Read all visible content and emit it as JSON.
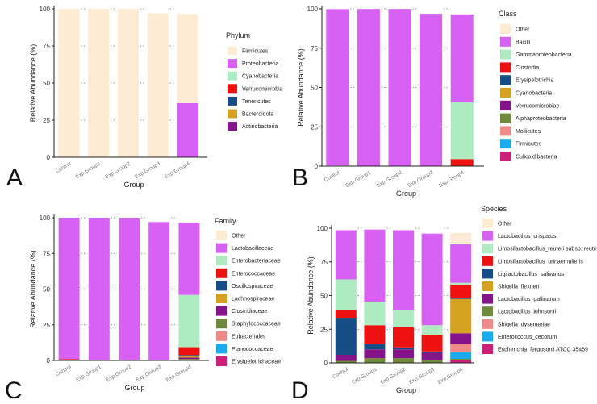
{
  "chart_data": [
    {
      "panel_letter": "A",
      "type": "bar",
      "stacked": true,
      "xlabel": "Group",
      "ylabel": "Relative Abundance (%)",
      "ylim": [
        0,
        100
      ],
      "yticks": [
        0,
        25,
        50,
        75,
        100
      ],
      "categories": [
        "Control",
        "Exp.Group1",
        "Exp.Group2",
        "Exp.Group3",
        "Exp.Group4"
      ],
      "legend_title": "Phylum",
      "legend_position": "right",
      "legend": [
        {
          "name": "Firmicutes",
          "color": "#FDEBD3"
        },
        {
          "name": "Proteobacteria",
          "color": "#D761F2"
        },
        {
          "name": "Cyanobacteria",
          "color": "#AEEBC0"
        },
        {
          "name": "Verrucomicrobia",
          "color": "#EE1111"
        },
        {
          "name": "Tenericutes",
          "color": "#164D87"
        },
        {
          "name": "Bacteroidota",
          "color": "#D4A120"
        },
        {
          "name": "Actinobacteria",
          "color": "#85138A"
        }
      ],
      "series": [
        {
          "name": "Proteobacteria",
          "color": "#D761F2",
          "values": [
            0.3,
            0.1,
            0.1,
            0.2,
            36.5
          ]
        },
        {
          "name": "Firmicutes",
          "color": "#FDEBD3",
          "values": [
            99.7,
            99.9,
            99.9,
            96.8,
            60
          ]
        }
      ]
    },
    {
      "panel_letter": "B",
      "type": "bar",
      "stacked": true,
      "xlabel": "Group",
      "ylabel": "Relative Abundance (%)",
      "ylim": [
        0,
        100
      ],
      "yticks": [
        0,
        25,
        50,
        75,
        100
      ],
      "categories": [
        "Control",
        "Exp.Group1",
        "Exp.Group2",
        "Exp.Group3",
        "Exp.Group4"
      ],
      "legend_title": "Class",
      "legend_position": "right",
      "legend": [
        {
          "name": "Other",
          "color": "#FDEBD3"
        },
        {
          "name": "Bacilli",
          "color": "#D761F2"
        },
        {
          "name": "Gammaproteobacteria",
          "color": "#AEEBC0"
        },
        {
          "name": "Clostridia",
          "color": "#EE1111"
        },
        {
          "name": "Erysipelotrichia",
          "color": "#164D87"
        },
        {
          "name": "Cyanobacteria",
          "color": "#D4A120"
        },
        {
          "name": "Verrucomicrobiae",
          "color": "#85138A"
        },
        {
          "name": "Alphaproteobacteria",
          "color": "#6F8A3A"
        },
        {
          "name": "Mollicutes",
          "color": "#F08A88"
        },
        {
          "name": "Firmicutes",
          "color": "#19ABEE"
        },
        {
          "name": "Culicoidibacteria",
          "color": "#CC1F77"
        }
      ],
      "series": [
        {
          "name": "Clostridia",
          "color": "#EE1111",
          "values": [
            0.2,
            0,
            0,
            0,
            4.5
          ]
        },
        {
          "name": "Gammaproteobacteria",
          "color": "#AEEBC0",
          "values": [
            0.2,
            0.1,
            0.1,
            0.1,
            36
          ]
        },
        {
          "name": "Bacilli",
          "color": "#D761F2",
          "values": [
            99.4,
            99.8,
            99.8,
            96.8,
            56
          ]
        }
      ]
    },
    {
      "panel_letter": "C",
      "type": "bar",
      "stacked": true,
      "xlabel": "Group",
      "ylabel": "Relative Abundance (%)",
      "ylim": [
        0,
        100
      ],
      "yticks": [
        0,
        25,
        50,
        75,
        100
      ],
      "categories": [
        "Control",
        "Exp.Group1",
        "Exp.Group2",
        "Exp.Group3",
        "Exp.Group4"
      ],
      "legend_title": "Family",
      "legend_position": "right",
      "legend": [
        {
          "name": "Other",
          "color": "#FDEBD3"
        },
        {
          "name": "Lactobacillaceae",
          "color": "#D761F2"
        },
        {
          "name": "Enterobacteriaceae",
          "color": "#AEEBC0"
        },
        {
          "name": "Enterococcaceae",
          "color": "#EE1111"
        },
        {
          "name": "Oscillospiraceae",
          "color": "#164D87"
        },
        {
          "name": "Lachnospiraceae",
          "color": "#D4A120"
        },
        {
          "name": "Clostridiaceae",
          "color": "#85138A"
        },
        {
          "name": "Staphylococcaceae",
          "color": "#6F8A3A"
        },
        {
          "name": "Eubacteriales",
          "color": "#F08A88"
        },
        {
          "name": "Planococcaceae",
          "color": "#19ABEE"
        },
        {
          "name": "Erysipelotrichaceae",
          "color": "#CC1F77"
        }
      ],
      "series": [
        {
          "name": "Staphylococcaceae",
          "color": "#6F8A3A",
          "values": [
            0,
            0,
            0,
            0,
            1
          ]
        },
        {
          "name": "Clostridiaceae",
          "color": "#85138A",
          "values": [
            0,
            0,
            0,
            0,
            1
          ]
        },
        {
          "name": "Lachnospiraceae",
          "color": "#D4A120",
          "values": [
            0.3,
            0,
            0,
            0,
            0.8
          ]
        },
        {
          "name": "Oscillospiraceae",
          "color": "#164D87",
          "values": [
            0.2,
            0,
            0,
            0,
            1
          ]
        },
        {
          "name": "Enterococcaceae",
          "color": "#EE1111",
          "values": [
            0.5,
            0.2,
            0.3,
            0.1,
            5.5
          ]
        },
        {
          "name": "Enterobacteriaceae",
          "color": "#AEEBC0",
          "values": [
            0,
            0.1,
            0.1,
            0.1,
            36.7
          ]
        },
        {
          "name": "Lactobacillaceae",
          "color": "#D761F2",
          "values": [
            99,
            99.7,
            99.6,
            96.8,
            50.5
          ]
        }
      ]
    },
    {
      "panel_letter": "D",
      "type": "bar",
      "stacked": true,
      "xlabel": "Group",
      "ylabel": "Relative Abundance (%)",
      "ylim": [
        0,
        100
      ],
      "yticks": [
        0,
        25,
        50,
        75,
        100
      ],
      "categories": [
        "Control",
        "Exp.Group1",
        "Exp.Group2",
        "Exp.Group3",
        "Exp.Group4"
      ],
      "legend_title": "Species",
      "legend_position": "right",
      "legend": [
        {
          "name": "Other",
          "color": "#FDEBD3"
        },
        {
          "name": "Lactobacillus_crispatus",
          "color": "#D761F2"
        },
        {
          "name": "Limosilactobacillus_reuteri subsp. reuteri",
          "color": "#AEEBC0"
        },
        {
          "name": "Limosilactobacillus_urinaemulieris",
          "color": "#EE1111"
        },
        {
          "name": "Ligilactobacillus_salivarius",
          "color": "#164D87"
        },
        {
          "name": "Shigella_flexneri",
          "color": "#D4A120"
        },
        {
          "name": "Lactobacillus_gallinarum",
          "color": "#85138A"
        },
        {
          "name": "Lactobacillus_johnsonii",
          "color": "#6F8A3A"
        },
        {
          "name": "Shigella_dysenteriae",
          "color": "#F08A88"
        },
        {
          "name": "Enterococcus_cecorum",
          "color": "#19ABEE"
        },
        {
          "name": "Escherichia_fergusonii ATCC 35469",
          "color": "#CC1F77"
        }
      ],
      "series": [
        {
          "name": "Escherichia_fergusonii ATCC 35469",
          "color": "#CC1F77",
          "values": [
            0,
            0,
            0,
            0,
            2
          ]
        },
        {
          "name": "Lactobacillus_johnsonii",
          "color": "#6F8A3A",
          "values": [
            1.5,
            3.5,
            3.5,
            2,
            1
          ]
        },
        {
          "name": "Enterococcus_cecorum",
          "color": "#19ABEE",
          "values": [
            0,
            0,
            0,
            0,
            5
          ]
        },
        {
          "name": "Shigella_dysenteriae",
          "color": "#F08A88",
          "values": [
            0,
            0,
            0,
            0,
            6
          ]
        },
        {
          "name": "Lactobacillus_gallinarum",
          "color": "#85138A",
          "values": [
            4.5,
            6.5,
            6.5,
            5.5,
            8
          ]
        },
        {
          "name": "Shigella_flexneri",
          "color": "#D4A120",
          "values": [
            0,
            0,
            0,
            0,
            25.5
          ]
        },
        {
          "name": "Ligilactobacillus_salivarius",
          "color": "#164D87",
          "values": [
            27.5,
            4,
            1.5,
            1,
            1
          ]
        },
        {
          "name": "Limosilactobacillus_urinaemulieris",
          "color": "#EE1111",
          "values": [
            6,
            14,
            15,
            12.5,
            9.5
          ]
        },
        {
          "name": "Limosilactobacillus_reuteri subsp. reuteri",
          "color": "#AEEBC0",
          "values": [
            22.5,
            17.5,
            13,
            7,
            1.5
          ]
        },
        {
          "name": "Lactobacillus_crispatus",
          "color": "#D761F2",
          "values": [
            36.5,
            53.5,
            59,
            68,
            28.5
          ]
        },
        {
          "name": "Other",
          "color": "#FDEBD3",
          "values": [
            0,
            0,
            0,
            0,
            8.5
          ]
        }
      ]
    }
  ]
}
